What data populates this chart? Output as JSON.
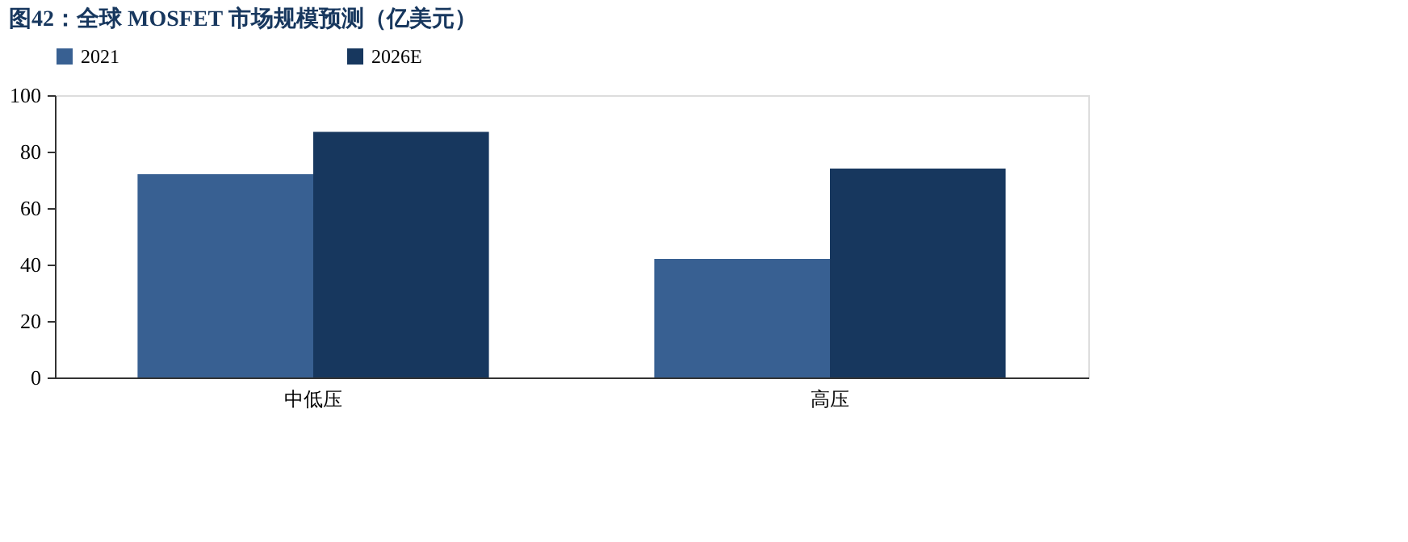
{
  "chart_data": {
    "type": "bar",
    "title": "图42：全球 MOSFET 市场规模预测（亿美元）",
    "categories": [
      "中低压",
      "高压"
    ],
    "series": [
      {
        "name": "2021",
        "color": "#386092",
        "values": [
          72,
          42
        ]
      },
      {
        "name": "2026E",
        "color": "#17375e",
        "values": [
          87,
          74
        ]
      }
    ],
    "ylim": [
      0,
      100
    ],
    "yticks": [
      0,
      20,
      40,
      60,
      80,
      100
    ],
    "grid": false,
    "legend": "top"
  }
}
